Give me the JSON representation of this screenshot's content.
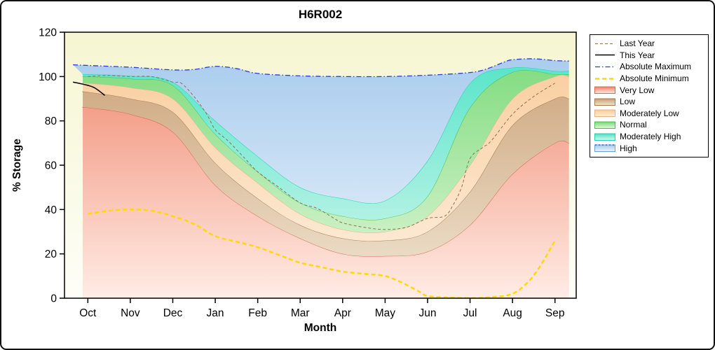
{
  "chart_data": {
    "type": "area",
    "title": "H6R002",
    "xlabel": "Month",
    "ylabel": "% Storage",
    "ylim": [
      0,
      120
    ],
    "y_ticks": [
      0,
      20,
      40,
      60,
      80,
      100,
      120
    ],
    "x_range": [
      -0.55,
      11.5
    ],
    "months_x": [
      0,
      1,
      2,
      3,
      4,
      5,
      6,
      7,
      8,
      9,
      10,
      11
    ],
    "x_tick_labels": [
      "Oct",
      "Nov",
      "Dec",
      "Jan",
      "Feb",
      "Mar",
      "Apr",
      "May",
      "Jun",
      "Jul",
      "Aug",
      "Sep"
    ],
    "band_x_extend": [
      -0.12,
      11.33
    ],
    "grid": "off",
    "legend_position": "top-right",
    "colors": {
      "plot_bg_top": "#f6f6d2",
      "plot_bg_bottom": "#fefef8",
      "frame": "#000000"
    },
    "bands": [
      {
        "name": "Very Low",
        "upper": [
          86,
          83,
          75,
          51,
          37,
          27,
          20,
          19,
          21,
          33,
          56,
          70
        ],
        "color_top": "#ef8166",
        "color_bottom": "#ffece5",
        "edge": "#d8694e"
      },
      {
        "name": "Low",
        "upper": [
          93,
          90,
          84,
          61,
          45,
          33,
          27,
          26,
          30,
          48,
          78,
          90
        ],
        "color_top": "#c89c70",
        "color_bottom": "#f1e6d4",
        "edge": "#a57b4e"
      },
      {
        "name": "Moderately Low",
        "upper": [
          97,
          95,
          90,
          68,
          52,
          38,
          31,
          30,
          37,
          60,
          90,
          100
        ],
        "color_top": "#f9c996",
        "color_bottom": "#fdf1e2",
        "edge": "#e5b383"
      },
      {
        "name": "Normal",
        "upper": [
          100,
          99,
          96,
          74,
          57,
          43,
          37,
          36,
          46,
          86,
          102,
          101
        ],
        "color_top": "#74d874",
        "color_bottom": "#e6f8de",
        "edge": "#4cc24c"
      },
      {
        "name": "Moderately High",
        "upper": [
          101,
          100.3,
          97.5,
          80,
          64,
          50,
          45,
          44,
          62,
          97,
          104,
          102.5
        ],
        "color_top": "#46e2c4",
        "color_bottom": "#def8f1",
        "edge": "#27cfae"
      },
      {
        "name": "High",
        "x": [
          -0.35,
          0,
          1,
          2,
          2.5,
          3,
          3.5,
          4,
          5,
          6,
          7,
          8,
          9,
          9.4,
          9.8,
          10,
          10.5,
          11,
          11.33
        ],
        "upper": [
          105.3,
          105,
          104.2,
          103,
          103.2,
          104.6,
          103.6,
          101.4,
          100.3,
          100,
          100,
          100.6,
          101.8,
          103.5,
          106.5,
          107.6,
          108,
          107.2,
          107
        ],
        "color_top": "#a3c8ec",
        "color_bottom": "#edf5fc",
        "edge": ""
      }
    ],
    "lines": [
      {
        "name": "Absolute Maximum",
        "x": [
          -0.35,
          0,
          1,
          2,
          2.5,
          3,
          3.5,
          4,
          5,
          6,
          7,
          8,
          9,
          9.4,
          9.8,
          10,
          10.5,
          11,
          11.33
        ],
        "values": [
          105.3,
          105,
          104.2,
          103,
          103.2,
          104.6,
          103.6,
          101.4,
          100.3,
          100,
          100,
          100.6,
          101.8,
          103.5,
          106.5,
          107.6,
          108,
          107.2,
          107
        ],
        "color": "#2a3bd6",
        "width": 1.3,
        "dash": "7 3 1.5 3"
      },
      {
        "name": "Absolute Minimum",
        "x": [
          0,
          0.5,
          1,
          1.5,
          2,
          2.5,
          3,
          3.5,
          4,
          4.5,
          5,
          5.5,
          6,
          6.5,
          7,
          7.4,
          7.8,
          8,
          8.5,
          9,
          9.5,
          10,
          10.4,
          10.7,
          11
        ],
        "values": [
          38,
          39.5,
          40,
          39.5,
          37,
          33.5,
          28,
          25.5,
          23,
          19.5,
          16,
          14,
          12,
          11,
          10,
          7,
          3,
          1,
          0.3,
          0,
          0.5,
          2,
          8,
          16,
          26
        ],
        "color": "#ffd900",
        "width": 2.5,
        "dash": "6 4"
      },
      {
        "name": "Last Year",
        "x": [
          0,
          0.5,
          1,
          1.5,
          2,
          2.2,
          2.5,
          2.8,
          3,
          3.3,
          3.7,
          4,
          4.5,
          5,
          5.4,
          5.8,
          6,
          6.5,
          7,
          7.5,
          8,
          8.4,
          8.6,
          8.8,
          9,
          9.3,
          9.5,
          10,
          10.5,
          11
        ],
        "values": [
          100,
          100.5,
          100,
          100,
          97.5,
          97,
          91,
          83,
          76,
          71,
          63,
          57,
          50,
          43,
          40.5,
          36,
          34,
          32,
          31,
          32,
          36,
          37,
          42,
          50,
          63,
          68,
          71,
          83,
          91,
          97
        ],
        "color": "#8f7249",
        "width": 1,
        "dash": "4 3"
      },
      {
        "name": "This Year",
        "x": [
          -0.35,
          -0.1,
          0.15,
          0.4
        ],
        "values": [
          97.5,
          96.5,
          95,
          91.5
        ],
        "color": "#000000",
        "width": 1.5,
        "dash": ""
      }
    ],
    "legend": [
      {
        "label": "Last Year",
        "sample": "line",
        "color": "#8f7249",
        "dash": "4 3",
        "width": 1
      },
      {
        "label": "This Year",
        "sample": "line",
        "color": "#000000",
        "dash": "",
        "width": 1.5
      },
      {
        "label": "Absolute Maximum",
        "sample": "line",
        "color": "#2a3bd6",
        "dash": "7 3 1.5 3",
        "width": 1.3
      },
      {
        "label": "Absolute Minimum",
        "sample": "line",
        "color": "#ffd900",
        "dash": "6 4",
        "width": 2.5
      },
      {
        "label": "Very Low",
        "sample": "patch",
        "top": "#ef8166",
        "bottom": "#ffece5",
        "edge": "#d8694e"
      },
      {
        "label": "Low",
        "sample": "patch",
        "top": "#c89c70",
        "bottom": "#f1e6d4",
        "edge": "#a57b4e"
      },
      {
        "label": "Moderately Low",
        "sample": "patch",
        "top": "#f9c996",
        "bottom": "#fdf1e2",
        "edge": "#e5b383"
      },
      {
        "label": "Normal",
        "sample": "patch",
        "top": "#74d874",
        "bottom": "#e6f8de",
        "edge": "#4cc24c"
      },
      {
        "label": "Moderately High",
        "sample": "patch",
        "top": "#46e2c4",
        "bottom": "#def8f1",
        "edge": "#27cfae"
      },
      {
        "label": "High",
        "sample": "patch",
        "top": "#a3c8ec",
        "bottom": "#edf5fc",
        "edge": "#6a9fd0",
        "line_color": "#2a3bd6",
        "line_dash": "2 3"
      }
    ]
  }
}
